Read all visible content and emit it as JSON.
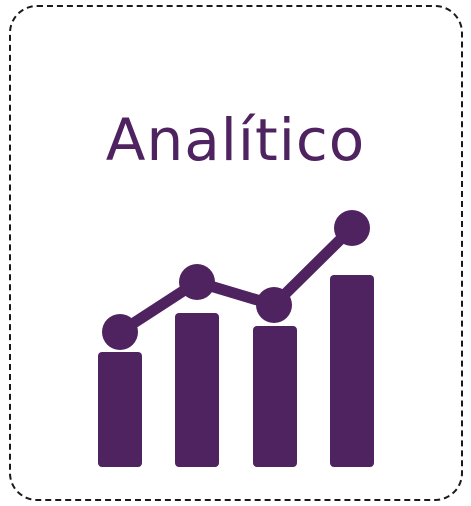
{
  "card": {
    "title": "Analítico"
  },
  "icon": {
    "name": "analytics-chart-icon",
    "bar_levels": [
      0.45,
      0.6,
      0.55,
      0.75
    ],
    "trend_levels": [
      0.35,
      0.48,
      0.42,
      0.62
    ]
  },
  "colors": {
    "accent": "#4f2260",
    "border": "#1a1a1a",
    "background": "#ffffff"
  }
}
